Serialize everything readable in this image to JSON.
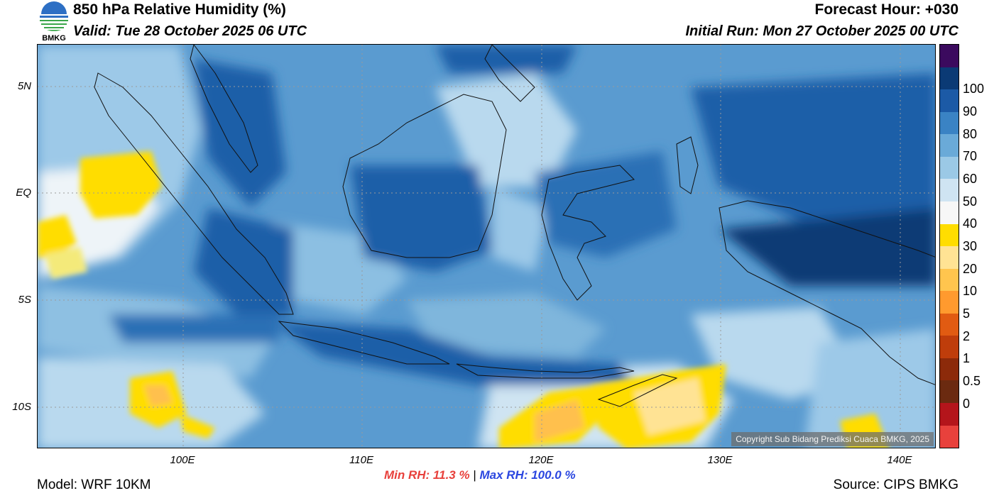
{
  "header": {
    "title": "850 hPa Relative Humidity (%)",
    "valid": "Valid: Tue 28 October 2025 06 UTC",
    "forecast_hour": "Forecast Hour: +030",
    "initial_run": "Initial Run: Mon 27 October 2025 00 UTC"
  },
  "logo": {
    "text": "BMKG",
    "accent": "#2d6fc4",
    "accent2": "#3aa64a"
  },
  "map": {
    "lat_labels": [
      "5N",
      "EQ",
      "5S",
      "10S"
    ],
    "lon_labels": [
      "100E",
      "110E",
      "120E",
      "130E",
      "140E"
    ],
    "copyright": "Copyright Sub Bidang Prediksi Cuaca BMKG, 2025",
    "colors": {
      "ocean_light": "#7fb6dc",
      "ocean_mid": "#4a90c8",
      "ocean_dark": "#1d5fa8",
      "very_dark": "#0b3a75",
      "dry_white": "#eef4f8",
      "dry_yellow": "#ffdd00",
      "dry_orange": "#ffc04d"
    }
  },
  "stats": {
    "min_rh": "Min RH:  11.3 %",
    "separator": "|",
    "max_rh": "Max RH: 100.0 %"
  },
  "footer": {
    "model": "Model: WRF 10KM",
    "source": "Source: CIPS BMKG"
  },
  "colorbar": {
    "colors": [
      "#3b0a5e",
      "#0b3a75",
      "#1c5aa6",
      "#3a83c4",
      "#6aaad8",
      "#9bc9e6",
      "#cfe4f2",
      "#f7f7f7",
      "#ffdd00",
      "#ffe394",
      "#ffc54e",
      "#ff9a2e",
      "#e15b12",
      "#bf3d0b",
      "#8c2a0a",
      "#6b2a10",
      "#b4151b",
      "#e8413c"
    ],
    "labels": [
      "100",
      "90",
      "80",
      "70",
      "60",
      "50",
      "40",
      "30",
      "20",
      "10",
      "5",
      "2",
      "1",
      "0.5",
      "0"
    ]
  }
}
